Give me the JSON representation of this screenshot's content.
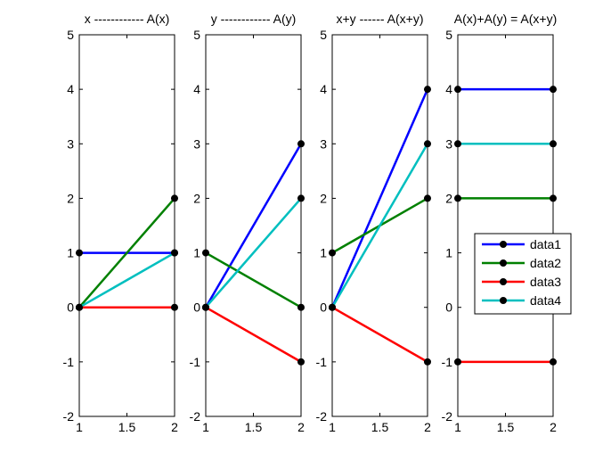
{
  "chart_data": [
    {
      "type": "line",
      "title": "x ------------ A(x)",
      "x": [
        1,
        2
      ],
      "xlim": [
        1,
        2
      ],
      "ylim": [
        -2,
        5
      ],
      "xticks": [
        "1",
        "1.5",
        "2"
      ],
      "yticks": [
        "-2",
        "-1",
        "0",
        "1",
        "2",
        "3",
        "4",
        "5"
      ],
      "series": [
        {
          "y": [
            1,
            1
          ],
          "color": "#0000ff"
        },
        {
          "y": [
            0,
            2
          ],
          "color": "#008000"
        },
        {
          "y": [
            0,
            0
          ],
          "color": "#ff0000"
        },
        {
          "y": [
            0,
            1
          ],
          "color": "#00bfbf"
        }
      ]
    },
    {
      "type": "line",
      "title": "y ------------ A(y)",
      "x": [
        1,
        2
      ],
      "xlim": [
        1,
        2
      ],
      "ylim": [
        -2,
        5
      ],
      "xticks": [
        "1",
        "1.5",
        "2"
      ],
      "yticks": [
        "-2",
        "-1",
        "0",
        "1",
        "2",
        "3",
        "4",
        "5"
      ],
      "series": [
        {
          "y": [
            0,
            3
          ],
          "color": "#0000ff"
        },
        {
          "y": [
            1,
            0
          ],
          "color": "#008000"
        },
        {
          "y": [
            0,
            -1
          ],
          "color": "#ff0000"
        },
        {
          "y": [
            0,
            2
          ],
          "color": "#00bfbf"
        }
      ]
    },
    {
      "type": "line",
      "title": "x+y ------ A(x+y)",
      "x": [
        1,
        2
      ],
      "xlim": [
        1,
        2
      ],
      "ylim": [
        -2,
        5
      ],
      "xticks": [
        "1",
        "1.5",
        "2"
      ],
      "yticks": [
        "-2",
        "-1",
        "0",
        "1",
        "2",
        "3",
        "4",
        "5"
      ],
      "series": [
        {
          "y": [
            0,
            4
          ],
          "color": "#0000ff"
        },
        {
          "y": [
            1,
            2
          ],
          "color": "#008000"
        },
        {
          "y": [
            0,
            -1
          ],
          "color": "#ff0000"
        },
        {
          "y": [
            0,
            3
          ],
          "color": "#00bfbf"
        }
      ]
    },
    {
      "type": "line",
      "title": "A(x)+A(y) = A(x+y)",
      "x": [
        1,
        2
      ],
      "xlim": [
        1,
        2
      ],
      "ylim": [
        -2,
        5
      ],
      "xticks": [
        "1",
        "1.5",
        "2"
      ],
      "yticks": [
        "-2",
        "-1",
        "0",
        "1",
        "2",
        "3",
        "4",
        "5"
      ],
      "legend": {
        "position": "right",
        "entries": [
          "data1",
          "data2",
          "data3",
          "data4"
        ]
      },
      "series": [
        {
          "name": "data1",
          "y": [
            4,
            4
          ],
          "color": "#0000ff"
        },
        {
          "name": "data2",
          "y": [
            2,
            2
          ],
          "color": "#008000"
        },
        {
          "name": "data3",
          "y": [
            -1,
            -1
          ],
          "color": "#ff0000"
        },
        {
          "name": "data4",
          "y": [
            3,
            3
          ],
          "color": "#00bfbf"
        }
      ]
    }
  ]
}
